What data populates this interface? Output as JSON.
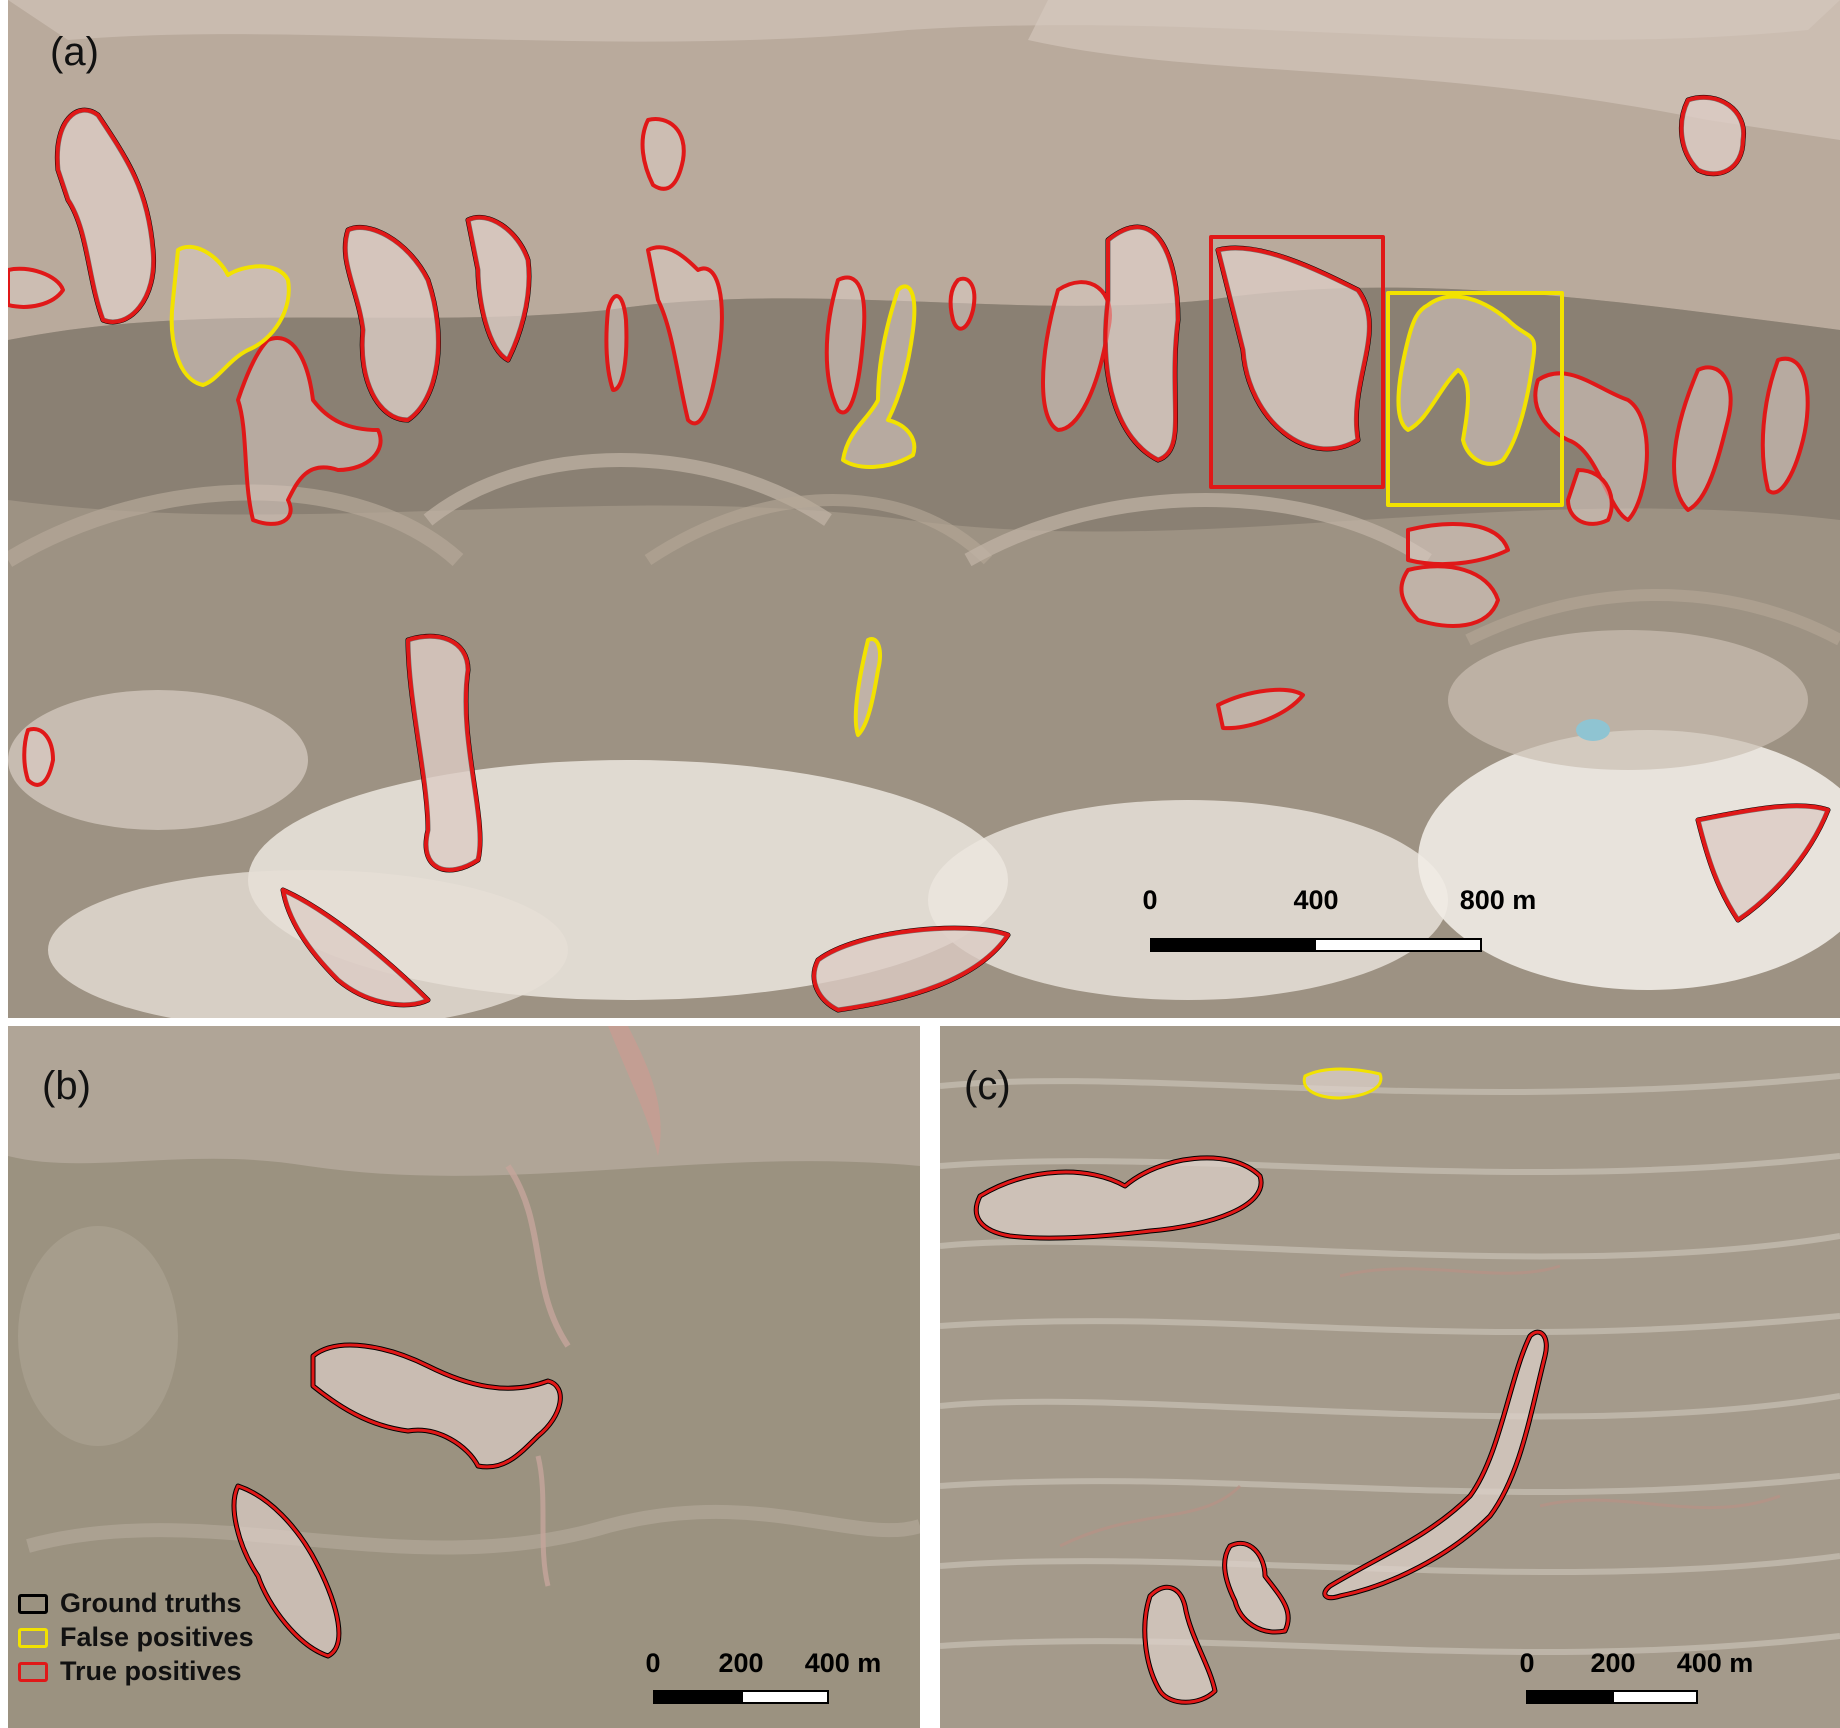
{
  "panels": {
    "a": {
      "label": "(a)"
    },
    "b": {
      "label": "(b)"
    },
    "c": {
      "label": "(c)"
    }
  },
  "scalebars": {
    "a": {
      "ticks": [
        "0",
        "400",
        "800 m"
      ]
    },
    "b": {
      "ticks": [
        "0",
        "200",
        "400 m"
      ]
    },
    "c": {
      "ticks": [
        "0",
        "200",
        "400 m"
      ]
    }
  },
  "legend": {
    "items": [
      {
        "label": "Ground truths",
        "color": "#000000"
      },
      {
        "label": "False positives",
        "color": "#f2e200"
      },
      {
        "label": "True positives",
        "color": "#e01818"
      }
    ]
  },
  "colors": {
    "true_positive": "#e01818",
    "false_positive": "#f2e200",
    "ground_truth": "#000000",
    "terrain_base": "#9a8f80",
    "terrain_light": "#d8ccc2",
    "salt_white": "#f4f1ec"
  },
  "counts": {
    "panel_a_highlight_boxes": 2
  }
}
